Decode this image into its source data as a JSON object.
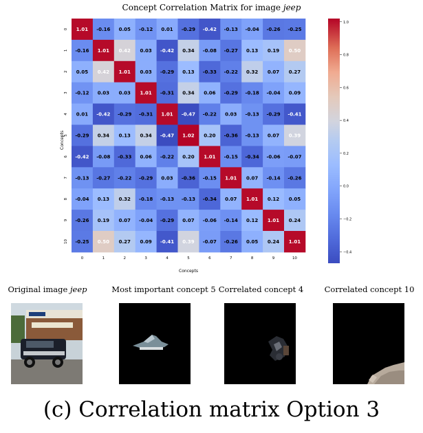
{
  "chart_data": {
    "type": "heatmap",
    "title_prefix": "Concept Correlation Matrix for image",
    "title_image": "jeep",
    "xlabel": "Concepts",
    "ylabel": "Concepts",
    "categories": [
      "0",
      "1",
      "2",
      "3",
      "4",
      "5",
      "6",
      "7",
      "8",
      "9",
      "10"
    ],
    "values": [
      [
        1.01,
        -0.16,
        0.05,
        -0.12,
        0.01,
        -0.29,
        -0.42,
        -0.13,
        -0.04,
        -0.26,
        -0.25
      ],
      [
        -0.16,
        1.01,
        0.42,
        0.03,
        -0.42,
        0.34,
        -0.08,
        -0.27,
        0.13,
        0.19,
        0.5
      ],
      [
        0.05,
        0.42,
        1.01,
        0.03,
        -0.29,
        0.13,
        -0.33,
        -0.22,
        0.32,
        0.07,
        0.27
      ],
      [
        -0.12,
        0.03,
        0.03,
        1.01,
        -0.31,
        0.34,
        0.06,
        -0.29,
        -0.18,
        -0.04,
        0.09
      ],
      [
        0.01,
        -0.42,
        -0.29,
        -0.31,
        1.01,
        -0.47,
        -0.22,
        0.03,
        -0.13,
        -0.29,
        -0.41
      ],
      [
        -0.29,
        0.34,
        0.13,
        0.34,
        -0.47,
        1.02,
        0.2,
        -0.36,
        -0.13,
        0.07,
        0.39
      ],
      [
        -0.42,
        -0.08,
        -0.33,
        0.06,
        -0.22,
        0.2,
        1.01,
        -0.15,
        -0.34,
        -0.06,
        -0.07
      ],
      [
        -0.13,
        -0.27,
        -0.22,
        -0.29,
        0.03,
        -0.36,
        -0.15,
        1.01,
        0.07,
        -0.14,
        -0.26
      ],
      [
        -0.04,
        0.13,
        0.32,
        -0.18,
        -0.13,
        -0.13,
        -0.34,
        0.07,
        1.01,
        0.12,
        0.05
      ],
      [
        -0.26,
        0.19,
        0.07,
        -0.04,
        -0.29,
        0.07,
        -0.06,
        -0.14,
        0.12,
        1.01,
        0.24
      ],
      [
        -0.25,
        0.5,
        0.27,
        0.09,
        -0.41,
        0.39,
        -0.07,
        -0.26,
        0.05,
        0.24,
        1.01
      ]
    ],
    "colorbar_range": [
      -0.47,
      1.02
    ],
    "colorbar_ticks": [
      1.0,
      0.8,
      0.6,
      0.4,
      0.2,
      0.0,
      -0.2,
      -0.4
    ],
    "colorbar_tick_labels": [
      "1.0",
      "0.8",
      "0.6",
      "0.4",
      "0.2",
      "0.0",
      "−0.2",
      "−0.4"
    ],
    "colormap": "coolwarm",
    "grid": false
  },
  "panels": [
    {
      "title": "Original image",
      "title_image": "jeep"
    },
    {
      "title": "Most important concept 5"
    },
    {
      "title": "Correlated concept 4"
    },
    {
      "title": "Correlated concept 10"
    }
  ],
  "caption": "(c) Correlation matrix Option 3",
  "colors": {
    "low": "#3b4cc0",
    "mid": "#dddddd",
    "high": "#b40426",
    "mask": "#000000"
  }
}
